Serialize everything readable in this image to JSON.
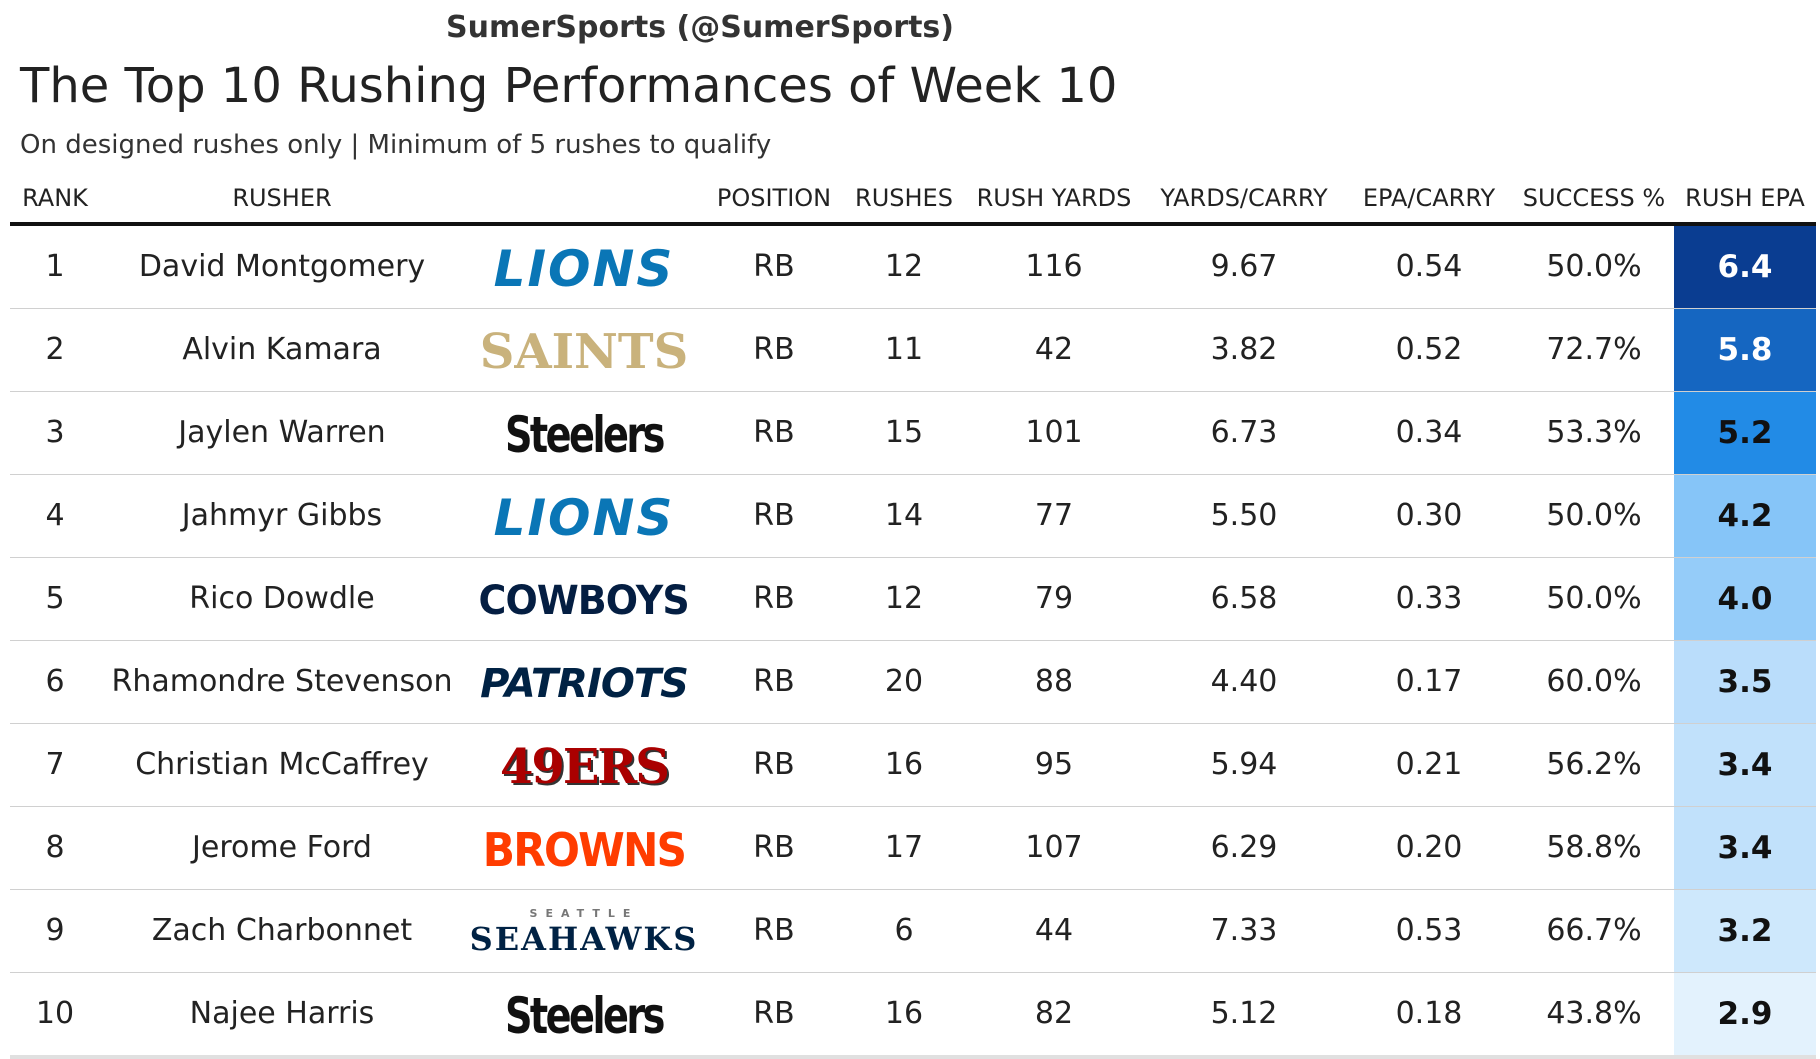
{
  "credit": "SumerSports (@SumerSports)",
  "title": "The Top 10 Rushing Performances of Week 10",
  "subtitle": "On designed rushes only | Minimum of 5 rushes to qualify",
  "columns": {
    "rank": "RANK",
    "rusher": "RUSHER",
    "position": "POSITION",
    "rushes": "RUSHES",
    "rush_yards": "RUSH YARDS",
    "yards_carry": "YARDS/CARRY",
    "epa_carry": "EPA/CARRY",
    "success": "SUCCESS %",
    "rush_epa": "RUSH EPA"
  },
  "colors": {
    "epa_scale": [
      "#0a3d91",
      "#1565c0",
      "#1e88e5",
      "#64b5f6",
      "#90caf9",
      "#bbdefb",
      "#e3f2fd"
    ]
  },
  "chart_data": {
    "type": "table",
    "rows": [
      {
        "rank": "1",
        "rusher": "David Montgomery",
        "team_logo": "LIONS",
        "team_icon": "lions-logo",
        "position": "RB",
        "rushes": "12",
        "rush_yards": "116",
        "yards_carry": "9.67",
        "epa_carry": "0.54",
        "success": "50.0%",
        "rush_epa": "6.4"
      },
      {
        "rank": "2",
        "rusher": "Alvin Kamara",
        "team_logo": "SAINTS",
        "team_icon": "saints-logo",
        "position": "RB",
        "rushes": "11",
        "rush_yards": "42",
        "yards_carry": "3.82",
        "epa_carry": "0.52",
        "success": "72.7%",
        "rush_epa": "5.8"
      },
      {
        "rank": "3",
        "rusher": "Jaylen Warren",
        "team_logo": "Steelers",
        "team_icon": "steelers-logo",
        "position": "RB",
        "rushes": "15",
        "rush_yards": "101",
        "yards_carry": "6.73",
        "epa_carry": "0.34",
        "success": "53.3%",
        "rush_epa": "5.2"
      },
      {
        "rank": "4",
        "rusher": "Jahmyr Gibbs",
        "team_logo": "LIONS",
        "team_icon": "lions-logo",
        "position": "RB",
        "rushes": "14",
        "rush_yards": "77",
        "yards_carry": "5.50",
        "epa_carry": "0.30",
        "success": "50.0%",
        "rush_epa": "4.2"
      },
      {
        "rank": "5",
        "rusher": "Rico Dowdle",
        "team_logo": "COWBOYS",
        "team_icon": "cowboys-logo",
        "position": "RB",
        "rushes": "12",
        "rush_yards": "79",
        "yards_carry": "6.58",
        "epa_carry": "0.33",
        "success": "50.0%",
        "rush_epa": "4.0"
      },
      {
        "rank": "6",
        "rusher": "Rhamondre Stevenson",
        "team_logo": "PATRIOTS",
        "team_icon": "patriots-logo",
        "position": "RB",
        "rushes": "20",
        "rush_yards": "88",
        "yards_carry": "4.40",
        "epa_carry": "0.17",
        "success": "60.0%",
        "rush_epa": "3.5"
      },
      {
        "rank": "7",
        "rusher": "Christian McCaffrey",
        "team_logo": "49ERS",
        "team_icon": "49ers-logo",
        "position": "RB",
        "rushes": "16",
        "rush_yards": "95",
        "yards_carry": "5.94",
        "epa_carry": "0.21",
        "success": "56.2%",
        "rush_epa": "3.4"
      },
      {
        "rank": "8",
        "rusher": "Jerome Ford",
        "team_logo": "BROWNS",
        "team_icon": "browns-logo",
        "position": "RB",
        "rushes": "17",
        "rush_yards": "107",
        "yards_carry": "6.29",
        "epa_carry": "0.20",
        "success": "58.8%",
        "rush_epa": "3.4"
      },
      {
        "rank": "9",
        "rusher": "Zach Charbonnet",
        "team_logo": "SEAHAWKS",
        "team_logo_small": "SEATTLE",
        "team_icon": "seahawks-logo",
        "position": "RB",
        "rushes": "6",
        "rush_yards": "44",
        "yards_carry": "7.33",
        "epa_carry": "0.53",
        "success": "66.7%",
        "rush_epa": "3.2"
      },
      {
        "rank": "10",
        "rusher": "Najee Harris",
        "team_logo": "Steelers",
        "team_icon": "steelers-logo",
        "position": "RB",
        "rushes": "16",
        "rush_yards": "82",
        "yards_carry": "5.12",
        "epa_carry": "0.18",
        "success": "43.8%",
        "rush_epa": "2.9"
      }
    ]
  }
}
